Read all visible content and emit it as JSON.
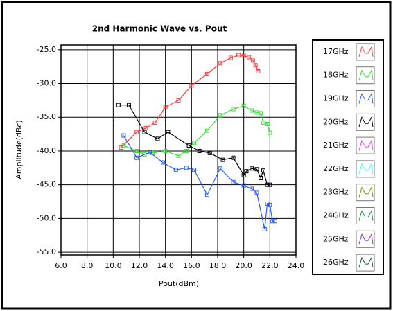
{
  "chart_data": {
    "type": "line",
    "title": "2nd Harmonic Wave vs. Pout",
    "xlabel": "Pout(dBm)",
    "ylabel": "Amplitude(dBc)",
    "xlim": [
      6,
      24
    ],
    "ylim": [
      -55.4,
      -24.3
    ],
    "xticks": [
      {
        "value": 6,
        "label": "6.0"
      },
      {
        "value": 8,
        "label": "8.0"
      },
      {
        "value": 10,
        "label": "10.0"
      },
      {
        "value": 12,
        "label": "12.0"
      },
      {
        "value": 14,
        "label": "14.0"
      },
      {
        "value": 16,
        "label": "16.0"
      },
      {
        "value": 18,
        "label": "18.0"
      },
      {
        "value": 20,
        "label": "20.0"
      },
      {
        "value": 22,
        "label": "22.0"
      },
      {
        "value": 24,
        "label": "24.0"
      }
    ],
    "yticks": [
      {
        "value": -25,
        "label": "-25.0"
      },
      {
        "value": -30,
        "label": "-30.0"
      },
      {
        "value": -35,
        "label": "-35.0"
      },
      {
        "value": -40,
        "label": "-40.0"
      },
      {
        "value": -45,
        "label": "-45.0"
      },
      {
        "value": -50,
        "label": "-50.0"
      },
      {
        "value": -55,
        "label": "-55.0"
      }
    ],
    "grid": true,
    "legend": "right",
    "series": [
      {
        "name": "17GHz",
        "color": "#ff3b3b",
        "x": [
          10.6,
          11.8,
          12.5,
          13.2,
          14.0,
          15.0,
          16.0,
          17.2,
          18.2,
          19.0,
          19.6,
          20.0,
          20.4,
          20.7,
          20.9,
          21.1
        ],
        "values": [
          -39.5,
          -37.2,
          -36.6,
          -35.8,
          -33.5,
          -32.5,
          -30.3,
          -28.6,
          -27.0,
          -26.2,
          -25.8,
          -25.9,
          -26.1,
          -26.6,
          -27.3,
          -28.2
        ]
      },
      {
        "name": "18GHz",
        "color": "#3ddc3d",
        "x": [
          10.8,
          11.8,
          12.4,
          13.0,
          14.0,
          15.0,
          15.6,
          16.2,
          17.2,
          18.2,
          19.2,
          20.0,
          20.6,
          21.0,
          21.3,
          21.5,
          21.8,
          22.0
        ],
        "values": [
          -39.2,
          -40.0,
          -40.5,
          -40.3,
          -40.0,
          -40.7,
          -40.0,
          -38.8,
          -37.0,
          -34.7,
          -33.8,
          -33.3,
          -34.0,
          -34.3,
          -34.4,
          -35.8,
          -36.0,
          -37.3
        ]
      },
      {
        "name": "19GHz",
        "color": "#2b5cff",
        "x": [
          10.8,
          11.8,
          12.8,
          13.8,
          14.8,
          15.6,
          16.2,
          17.2,
          18.2,
          19.2,
          20.0,
          20.6,
          21.0,
          21.6,
          21.8,
          22.0,
          22.2,
          22.4
        ],
        "values": [
          -37.7,
          -41.0,
          -40.2,
          -41.7,
          -42.8,
          -42.5,
          -42.8,
          -46.5,
          -42.6,
          -44.6,
          -45.1,
          -45.6,
          -46.2,
          -51.6,
          -47.8,
          -48.0,
          -50.4,
          -50.4
        ]
      },
      {
        "name": "20GHz",
        "color": "#000000",
        "x": [
          10.4,
          11.2,
          12.4,
          13.4,
          14.2,
          15.8,
          16.6,
          17.4,
          18.4,
          19.2,
          20.0,
          20.2,
          20.6,
          21.0,
          21.3,
          21.5,
          21.8,
          22.0
        ],
        "values": [
          -33.2,
          -33.2,
          -37.2,
          -38.2,
          -37.2,
          -39.2,
          -40.0,
          -40.3,
          -41.3,
          -41.0,
          -43.6,
          -43.0,
          -42.6,
          -42.7,
          -44.0,
          -42.9,
          -45.0,
          -45.0
        ]
      },
      {
        "name": "21GHz",
        "color": "#ff3bff",
        "x": [],
        "values": []
      },
      {
        "name": "22GHz",
        "color": "#3bffff",
        "x": [],
        "values": []
      },
      {
        "name": "23GHz",
        "color": "#8a8a00",
        "x": [],
        "values": []
      },
      {
        "name": "24GHz",
        "color": "#1f8f3f",
        "x": [],
        "values": []
      },
      {
        "name": "25GHz",
        "color": "#8a2be2",
        "x": [],
        "values": []
      },
      {
        "name": "26GHz",
        "color": "#1f5f2f",
        "x": [],
        "values": []
      }
    ]
  }
}
